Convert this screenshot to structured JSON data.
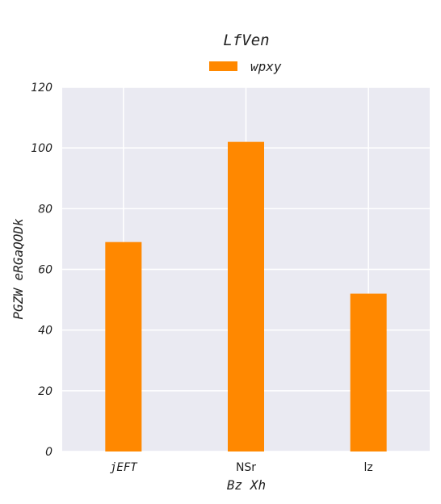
{
  "chart_data": {
    "type": "bar",
    "title": "LfVen",
    "xlabel": "Bz Xh",
    "ylabel": "PGZW eRGaQODk",
    "categories": [
      "jEFT",
      "NSr",
      "lz"
    ],
    "series": [
      {
        "name": "wpxy",
        "values": [
          69,
          102,
          52
        ],
        "color": "#ff8800"
      }
    ],
    "ylim": [
      0,
      120
    ],
    "yticks": [
      0,
      20,
      40,
      60,
      80,
      100,
      120
    ],
    "grid": true,
    "legend": "top-center",
    "background": "#eaeaf2",
    "gridColor": "#ffffff"
  }
}
